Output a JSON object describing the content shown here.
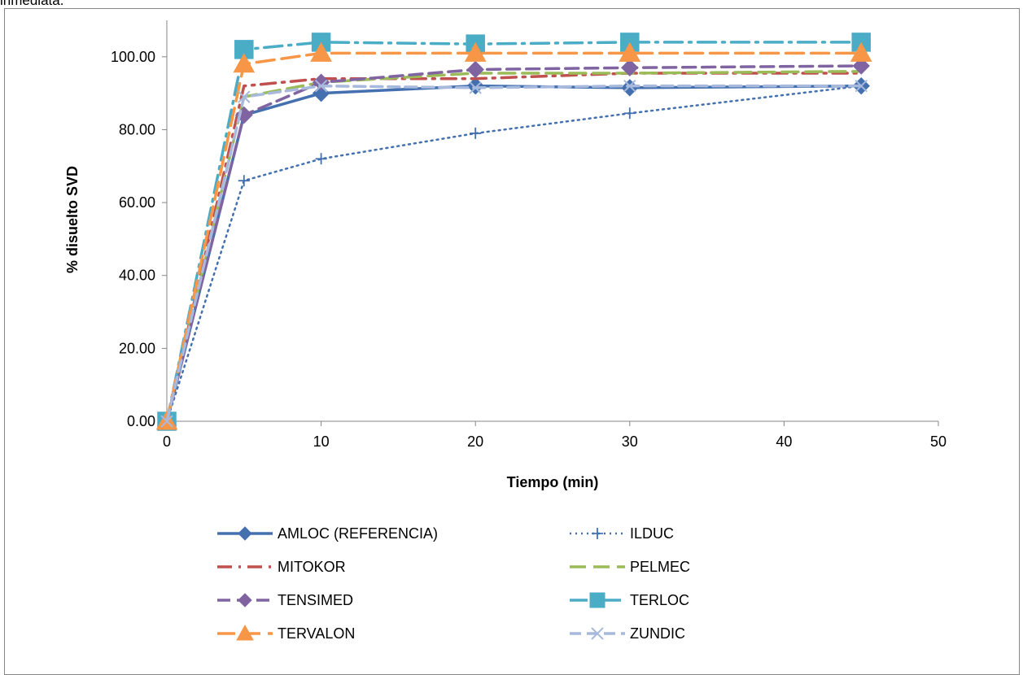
{
  "page": {
    "top_fragment": "inmediata."
  },
  "chart_data": {
    "type": "line",
    "xlabel": "Tiempo (min)",
    "ylabel": "% disuelto SVD",
    "xlim": [
      0,
      50
    ],
    "ylim": [
      0,
      110
    ],
    "x_ticks": [
      0,
      10,
      20,
      30,
      40,
      50
    ],
    "y_ticks": [
      0,
      20,
      40,
      60,
      80,
      100
    ],
    "y_tick_labels": [
      "0.00",
      "20.00",
      "40.00",
      "60.00",
      "80.00",
      "100.00"
    ],
    "x": [
      0,
      5,
      10,
      20,
      30,
      45
    ],
    "grid": false,
    "legend_position": "bottom",
    "series": [
      {
        "name": "AMLOC (REFERENCIA)",
        "values": [
          0,
          84,
          90,
          92,
          91.5,
          92
        ],
        "color": "#4470b0",
        "dash": "",
        "marker": "diamond",
        "width": 3.5
      },
      {
        "name": "ILDUC",
        "values": [
          0,
          66,
          72,
          79,
          84.5,
          92
        ],
        "color": "#4470b0",
        "dash": "2 5",
        "marker": "plus",
        "width": 2.5
      },
      {
        "name": "MITOKOR",
        "values": [
          0,
          92,
          94,
          94,
          95.5,
          95.5
        ],
        "color": "#c0504d",
        "dash": "18 8 3 8",
        "marker": "none",
        "width": 3.5
      },
      {
        "name": "PELMEC",
        "values": [
          0,
          89,
          93,
          95.5,
          95.5,
          96
        ],
        "color": "#9bbb59",
        "dash": "20 9",
        "marker": "none",
        "width": 3.5
      },
      {
        "name": "TENSIMED",
        "values": [
          0,
          84,
          93,
          96.5,
          97,
          97.5
        ],
        "color": "#8064a2",
        "dash": "16 8",
        "marker": "diamond",
        "width": 3.5
      },
      {
        "name": "TERLOC",
        "values": [
          0,
          102,
          104,
          103.5,
          104,
          104
        ],
        "color": "#4bacc6",
        "dash": "22 8 3 8",
        "marker": "square",
        "width": 3.5
      },
      {
        "name": "TERVALON",
        "values": [
          0,
          98,
          101,
          101,
          101,
          101
        ],
        "color": "#f79646",
        "dash": "22 9",
        "marker": "triangle",
        "width": 3.5
      },
      {
        "name": "ZUNDIC",
        "values": [
          0,
          89,
          92,
          91.5,
          92,
          92
        ],
        "color": "#a7b9dc",
        "dash": "14 7",
        "marker": "x",
        "width": 3.5
      }
    ]
  }
}
